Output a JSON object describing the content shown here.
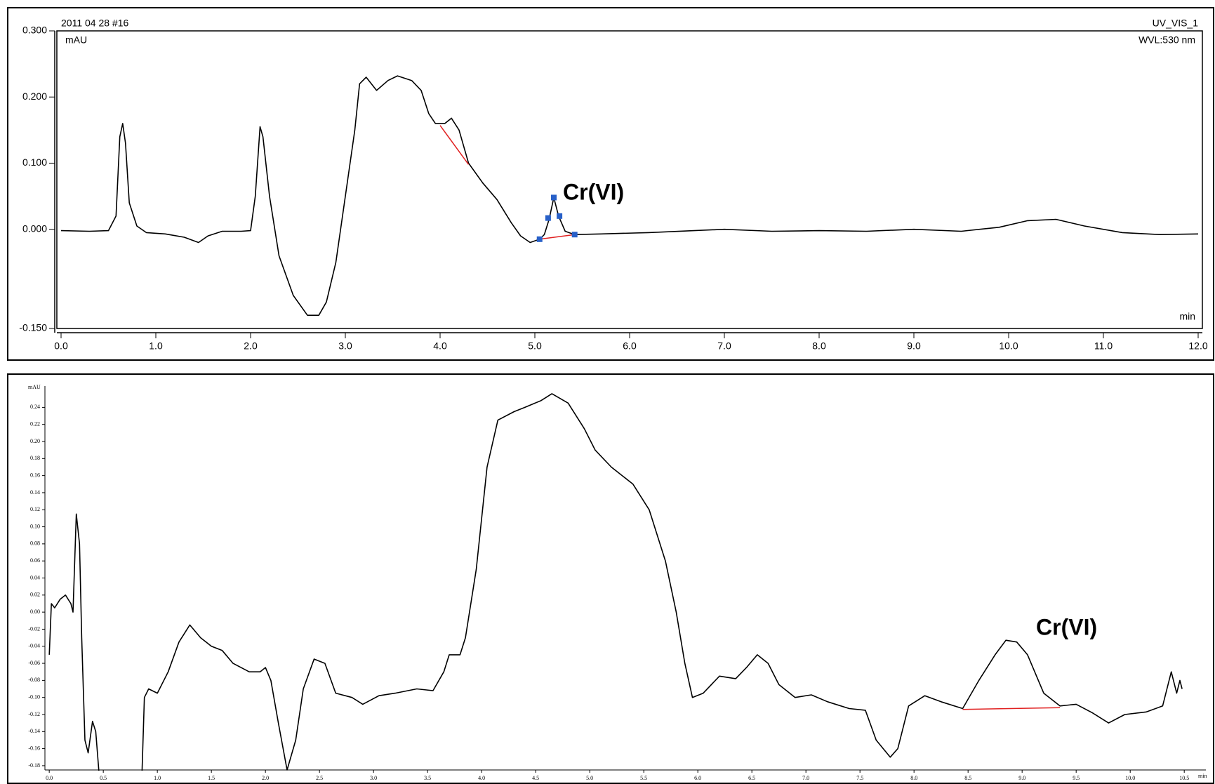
{
  "chart_data": [
    {
      "type": "line",
      "title": "2011 04 28 #16",
      "channel": "UV_VIS_1",
      "y_label": "mAU",
      "wavelength": "WVL:530 nm",
      "x_label": "min",
      "annotation": "Cr(VI)",
      "xlim": [
        0,
        12
      ],
      "ylim": [
        -0.15,
        0.3
      ],
      "xticks": [
        {
          "value": 0,
          "label": "0.0"
        },
        {
          "value": 1,
          "label": "1.0"
        },
        {
          "value": 2,
          "label": "2.0"
        },
        {
          "value": 3,
          "label": "3.0"
        },
        {
          "value": 4,
          "label": "4.0"
        },
        {
          "value": 5,
          "label": "5.0"
        },
        {
          "value": 6,
          "label": "6.0"
        },
        {
          "value": 7,
          "label": "7.0"
        },
        {
          "value": 8,
          "label": "8.0"
        },
        {
          "value": 9,
          "label": "9.0"
        },
        {
          "value": 10,
          "label": "10.0"
        },
        {
          "value": 11,
          "label": "11.0"
        },
        {
          "value": 12,
          "label": "12.0"
        }
      ],
      "yticks": [
        {
          "value": -0.15,
          "label": "-0.150"
        },
        {
          "value": 0,
          "label": "0.000"
        },
        {
          "value": 0.1,
          "label": "0.100"
        },
        {
          "value": 0.2,
          "label": "0.200"
        },
        {
          "value": 0.3,
          "label": "0.300"
        }
      ],
      "color": "#000000",
      "x": [
        0,
        0.3,
        0.5,
        0.58,
        0.62,
        0.65,
        0.68,
        0.72,
        0.8,
        0.9,
        1.1,
        1.3,
        1.45,
        1.55,
        1.7,
        1.9,
        2.0,
        2.05,
        2.1,
        2.13,
        2.2,
        2.3,
        2.45,
        2.6,
        2.72,
        2.8,
        2.9,
        3.0,
        3.1,
        3.15,
        3.22,
        3.33,
        3.45,
        3.55,
        3.7,
        3.8,
        3.88,
        3.95,
        4.05,
        4.12,
        4.2,
        4.3,
        4.45,
        4.6,
        4.75,
        4.85,
        4.95,
        5.05,
        5.1,
        5.15,
        5.2,
        5.25,
        5.32,
        5.42,
        5.7,
        6.2,
        7.0,
        7.5,
        8.0,
        8.5,
        9.0,
        9.5,
        9.9,
        10.2,
        10.5,
        10.8,
        11.2,
        11.6,
        12.0
      ],
      "values": [
        -0.002,
        -0.003,
        -0.002,
        0.02,
        0.14,
        0.16,
        0.13,
        0.04,
        0.005,
        -0.005,
        -0.007,
        -0.012,
        -0.02,
        -0.01,
        -0.003,
        -0.003,
        -0.002,
        0.05,
        0.155,
        0.14,
        0.05,
        -0.04,
        -0.1,
        -0.13,
        -0.13,
        -0.11,
        -0.05,
        0.05,
        0.15,
        0.22,
        0.23,
        0.21,
        0.225,
        0.232,
        0.225,
        0.21,
        0.175,
        0.16,
        0.16,
        0.168,
        0.15,
        0.1,
        0.07,
        0.045,
        0.01,
        -0.01,
        -0.02,
        -0.015,
        -0.008,
        0.015,
        0.048,
        0.02,
        -0.003,
        -0.008,
        -0.007,
        -0.005,
        0,
        -0.003,
        -0.002,
        -0.003,
        0,
        -0.003,
        0.003,
        0.013,
        0.015,
        0.005,
        -0.005,
        -0.008,
        -0.007
      ],
      "baselines": [
        {
          "color": "#e02020",
          "x": [
            4.0,
            4.3
          ],
          "values": [
            0.157,
            0.098
          ]
        },
        {
          "color": "#e02020",
          "x": [
            5.05,
            5.42
          ],
          "values": [
            -0.015,
            -0.008
          ]
        }
      ],
      "peak_markers": {
        "color": "#2860c8",
        "x": [
          5.05,
          5.14,
          5.2,
          5.26,
          5.42
        ],
        "values": [
          -0.015,
          0.017,
          0.048,
          0.02,
          -0.008
        ]
      }
    },
    {
      "type": "line",
      "y_label": "mAU",
      "x_label": "min",
      "annotation": "Cr(VI)",
      "xlim": [
        -0.04,
        10.7
      ],
      "ylim": [
        -0.185,
        0.265
      ],
      "xticks": [
        {
          "value": 0,
          "label": "0.0"
        },
        {
          "value": 0.5,
          "label": "0.5"
        },
        {
          "value": 1,
          "label": "1.0"
        },
        {
          "value": 1.5,
          "label": "1.5"
        },
        {
          "value": 2,
          "label": "2.0"
        },
        {
          "value": 2.5,
          "label": "2.5"
        },
        {
          "value": 3,
          "label": "3.0"
        },
        {
          "value": 3.5,
          "label": "3.5"
        },
        {
          "value": 4,
          "label": "4.0"
        },
        {
          "value": 4.5,
          "label": "4.5"
        },
        {
          "value": 5,
          "label": "5.0"
        },
        {
          "value": 5.5,
          "label": "5.5"
        },
        {
          "value": 6,
          "label": "6.0"
        },
        {
          "value": 6.5,
          "label": "6.5"
        },
        {
          "value": 7,
          "label": "7.0"
        },
        {
          "value": 7.5,
          "label": "7.5"
        },
        {
          "value": 8,
          "label": "8.0"
        },
        {
          "value": 8.5,
          "label": "8.5"
        },
        {
          "value": 9,
          "label": "9.0"
        },
        {
          "value": 9.5,
          "label": "9.5"
        },
        {
          "value": 10,
          "label": "10.0"
        },
        {
          "value": 10.5,
          "label": "10.5"
        }
      ],
      "yticks": [
        {
          "value": -0.18,
          "label": "-0.18"
        },
        {
          "value": -0.16,
          "label": "-0.16"
        },
        {
          "value": -0.14,
          "label": "-0.14"
        },
        {
          "value": -0.12,
          "label": "-0.12"
        },
        {
          "value": -0.1,
          "label": "-0.10"
        },
        {
          "value": -0.08,
          "label": "-0.08"
        },
        {
          "value": -0.06,
          "label": "-0.06"
        },
        {
          "value": -0.04,
          "label": "-0.04"
        },
        {
          "value": -0.02,
          "label": "-0.02"
        },
        {
          "value": 0,
          "label": "0.00"
        },
        {
          "value": 0.02,
          "label": "0.02"
        },
        {
          "value": 0.04,
          "label": "0.04"
        },
        {
          "value": 0.06,
          "label": "0.06"
        },
        {
          "value": 0.08,
          "label": "0.08"
        },
        {
          "value": 0.1,
          "label": "0.10"
        },
        {
          "value": 0.12,
          "label": "0.12"
        },
        {
          "value": 0.14,
          "label": "0.14"
        },
        {
          "value": 0.16,
          "label": "0.16"
        },
        {
          "value": 0.18,
          "label": "0.18"
        },
        {
          "value": 0.2,
          "label": "0.20"
        },
        {
          "value": 0.22,
          "label": "0.22"
        },
        {
          "value": 0.24,
          "label": "0.24"
        }
      ],
      "color": "#000000",
      "x": [
        0,
        0.02,
        0.05,
        0.1,
        0.15,
        0.2,
        0.22,
        0.25,
        0.28,
        0.3,
        0.33,
        0.36,
        0.4,
        0.43,
        0.48,
        0.85,
        0.88,
        0.92,
        1.0,
        1.1,
        1.2,
        1.3,
        1.4,
        1.5,
        1.6,
        1.7,
        1.85,
        1.95,
        2.0,
        2.05,
        2.12,
        2.2,
        2.28,
        2.35,
        2.45,
        2.55,
        2.65,
        2.8,
        2.9,
        3.05,
        3.2,
        3.4,
        3.55,
        3.65,
        3.7,
        3.8,
        3.85,
        3.95,
        4.05,
        4.15,
        4.3,
        4.4,
        4.55,
        4.65,
        4.8,
        4.95,
        5.05,
        5.2,
        5.4,
        5.55,
        5.7,
        5.8,
        5.88,
        5.95,
        6.05,
        6.2,
        6.35,
        6.45,
        6.55,
        6.65,
        6.75,
        6.9,
        7.05,
        7.2,
        7.4,
        7.55,
        7.65,
        7.78,
        7.85,
        7.95,
        8.1,
        8.25,
        8.45,
        8.6,
        8.75,
        8.85,
        8.95,
        9.05,
        9.2,
        9.35,
        9.5,
        9.65,
        9.8,
        9.95,
        10.15,
        10.3,
        10.38,
        10.43,
        10.46,
        10.48
      ],
      "values": [
        -0.05,
        0.01,
        0.005,
        0.015,
        0.02,
        0.01,
        0,
        0.115,
        0.08,
        -0.03,
        -0.15,
        -0.165,
        -0.128,
        -0.14,
        -0.22,
        -0.22,
        -0.1,
        -0.09,
        -0.095,
        -0.07,
        -0.035,
        -0.015,
        -0.03,
        -0.04,
        -0.045,
        -0.06,
        -0.07,
        -0.07,
        -0.065,
        -0.08,
        -0.13,
        -0.185,
        -0.15,
        -0.09,
        -0.055,
        -0.06,
        -0.095,
        -0.1,
        -0.108,
        -0.098,
        -0.095,
        -0.09,
        -0.092,
        -0.07,
        -0.05,
        -0.05,
        -0.03,
        0.05,
        0.17,
        0.225,
        0.235,
        0.24,
        0.248,
        0.256,
        0.245,
        0.215,
        0.19,
        0.17,
        0.15,
        0.12,
        0.06,
        0,
        -0.06,
        -0.1,
        -0.095,
        -0.075,
        -0.078,
        -0.065,
        -0.05,
        -0.06,
        -0.085,
        -0.1,
        -0.097,
        -0.105,
        -0.113,
        -0.115,
        -0.15,
        -0.17,
        -0.16,
        -0.11,
        -0.098,
        -0.105,
        -0.113,
        -0.08,
        -0.05,
        -0.033,
        -0.035,
        -0.05,
        -0.095,
        -0.11,
        -0.108,
        -0.118,
        -0.13,
        -0.12,
        -0.117,
        -0.11,
        -0.07,
        -0.095,
        -0.08,
        -0.09
      ],
      "baselines": [
        {
          "color": "#e02020",
          "x": [
            8.45,
            9.35
          ],
          "values": [
            -0.114,
            -0.112
          ]
        }
      ]
    }
  ]
}
